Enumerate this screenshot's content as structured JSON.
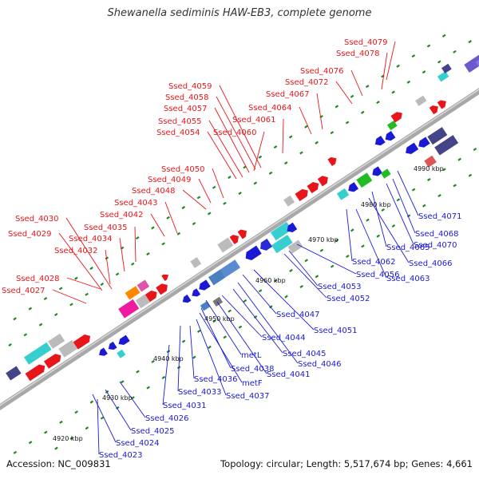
{
  "title": "Shewanella sediminis HAW-EB3, complete genome",
  "accession": "Accession: NC_009831",
  "summary": "Topology: circular; Length: 5,517,674 bp; Genes: 4,661",
  "colors": {
    "background": "#ffffff",
    "backbone": "#8a8a8a",
    "forward_label": "#e8161b",
    "reverse_label": "#1a1ad6",
    "tick": "#1e8a1e"
  },
  "scale_labels": [
    "4920 kbp",
    "4930 kbp",
    "4940 kbp",
    "4950 kbp",
    "4960 kbp",
    "4970 kbp",
    "4980 kbp",
    "4990 kbp"
  ],
  "forward_labels": [
    "Ssed_4079",
    "Ssed_4078",
    "Ssed_4076",
    "Ssed_4072",
    "Ssed_4067",
    "Ssed_4064",
    "Ssed_4061",
    "Ssed_4059",
    "Ssed_4058",
    "Ssed_4057",
    "Ssed_4060",
    "Ssed_4055",
    "Ssed_4054",
    "Ssed_4050",
    "Ssed_4049",
    "Ssed_4048",
    "Ssed_4043",
    "Ssed_4042",
    "Ssed_4035",
    "Ssed_4030",
    "Ssed_4034",
    "Ssed_4029",
    "Ssed_4032",
    "Ssed_4028",
    "Ssed_4027"
  ],
  "reverse_labels": [
    "Ssed_4071",
    "Ssed_4068",
    "Ssed_4070",
    "Ssed_4065",
    "Ssed_4066",
    "Ssed_4062",
    "Ssed_4063",
    "Ssed_4056",
    "Ssed_4053",
    "Ssed_4052",
    "Ssed_4047",
    "Ssed_4051",
    "Ssed_4044",
    "Ssed_4045",
    "Ssed_4046",
    "metL",
    "Ssed_4041",
    "Ssed_4038",
    "metF",
    "Ssed_4036",
    "Ssed_4037",
    "Ssed_4033",
    "Ssed_4031",
    "Ssed_4026",
    "Ssed_4025",
    "Ssed_4024",
    "Ssed_4023"
  ]
}
